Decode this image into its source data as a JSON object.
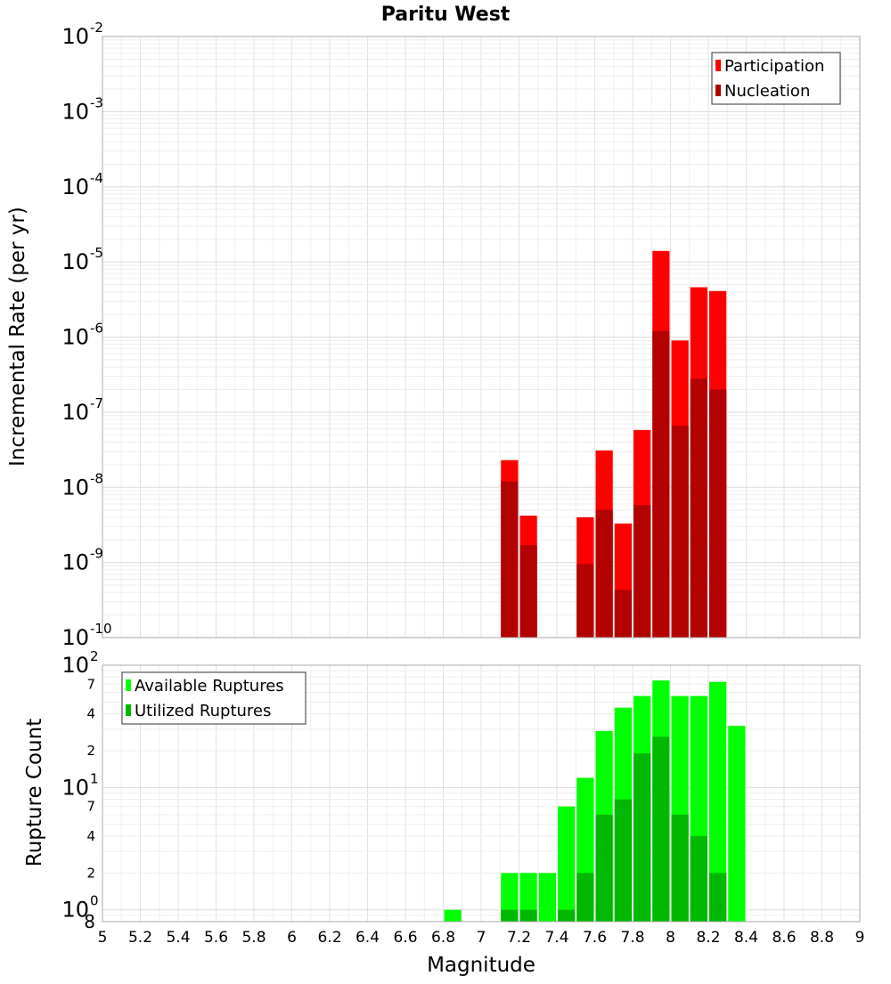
{
  "chart_data": [
    {
      "type": "bar",
      "title": "Paritu West",
      "xlabel": "",
      "ylabel": "Incremental Rate (per yr)",
      "y_scale": "log",
      "ylim": [
        1e-10,
        0.01
      ],
      "xlim": [
        5,
        9
      ],
      "bar_width": 0.1,
      "y_ticks": [
        {
          "base": "10",
          "exp": "-10",
          "value": 1e-10
        },
        {
          "base": "10",
          "exp": "-9",
          "value": 1e-09
        },
        {
          "base": "10",
          "exp": "-8",
          "value": 1e-08
        },
        {
          "base": "10",
          "exp": "-7",
          "value": 1e-07
        },
        {
          "base": "10",
          "exp": "-6",
          "value": 1e-06
        },
        {
          "base": "10",
          "exp": "-5",
          "value": 1e-05
        },
        {
          "base": "10",
          "exp": "-4",
          "value": 0.0001
        },
        {
          "base": "10",
          "exp": "-3",
          "value": 0.001
        },
        {
          "base": "10",
          "exp": "-2",
          "value": 0.01
        }
      ],
      "legend_position": "top-right",
      "series": [
        {
          "name": "Participation",
          "color": "#ff0000",
          "x": [
            7.15,
            7.25,
            7.55,
            7.65,
            7.75,
            7.85,
            7.95,
            8.05,
            8.15,
            8.25
          ],
          "values": [
            2.3e-08,
            4.2e-09,
            4e-09,
            3.1e-08,
            3.3e-09,
            5.8e-08,
            1.4e-05,
            9e-07,
            4.6e-06,
            4.1e-06
          ]
        },
        {
          "name": "Nucleation",
          "color": "#b30000",
          "x": [
            7.15,
            7.25,
            7.55,
            7.65,
            7.75,
            7.85,
            7.95,
            8.05,
            8.15,
            8.25
          ],
          "values": [
            1.2e-08,
            1.7e-09,
            9.5e-10,
            5e-09,
            4.3e-10,
            5.8e-09,
            1.2e-06,
            6.6e-08,
            2.8e-07,
            2e-07
          ]
        }
      ]
    },
    {
      "type": "bar",
      "title": "",
      "xlabel": "Magnitude",
      "ylabel": "Rupture Count",
      "y_scale": "log",
      "ylim": [
        0.8,
        100
      ],
      "xlim": [
        5,
        9
      ],
      "bar_width": 0.1,
      "x_ticks": [
        "5",
        "5.2",
        "5.4",
        "5.6",
        "5.8",
        "6",
        "6.2",
        "6.4",
        "6.6",
        "6.8",
        "7",
        "7.2",
        "7.4",
        "7.6",
        "7.8",
        "8",
        "8.2",
        "8.4",
        "8.6",
        "8.8",
        "9"
      ],
      "y_major_ticks": [
        {
          "base": "10",
          "exp": "0",
          "value": 1
        },
        {
          "base": "10",
          "exp": "1",
          "value": 10
        },
        {
          "base": "10",
          "exp": "2",
          "value": 100
        }
      ],
      "y_minor_ticks": [
        {
          "label": "8",
          "value": 0.8
        },
        {
          "label": "2",
          "value": 2
        },
        {
          "label": "4",
          "value": 4
        },
        {
          "label": "7",
          "value": 7
        },
        {
          "label": "2",
          "value": 20
        },
        {
          "label": "4",
          "value": 40
        },
        {
          "label": "7",
          "value": 70
        }
      ],
      "legend_position": "top-left",
      "series": [
        {
          "name": "Available Ruptures",
          "color": "#00ff00",
          "x": [
            6.85,
            7.15,
            7.25,
            7.35,
            7.45,
            7.55,
            7.65,
            7.75,
            7.85,
            7.95,
            8.05,
            8.15,
            8.25,
            8.35
          ],
          "values": [
            1,
            2,
            2,
            2,
            7,
            12,
            29,
            45,
            56,
            75,
            56,
            56,
            73,
            32
          ]
        },
        {
          "name": "Utilized Ruptures",
          "color": "#00b800",
          "x": [
            7.15,
            7.25,
            7.45,
            7.55,
            7.65,
            7.75,
            7.85,
            7.95,
            8.05,
            8.15,
            8.25
          ],
          "values": [
            1,
            1,
            1,
            2,
            6,
            8,
            19,
            26,
            6,
            4,
            2
          ]
        }
      ]
    }
  ]
}
